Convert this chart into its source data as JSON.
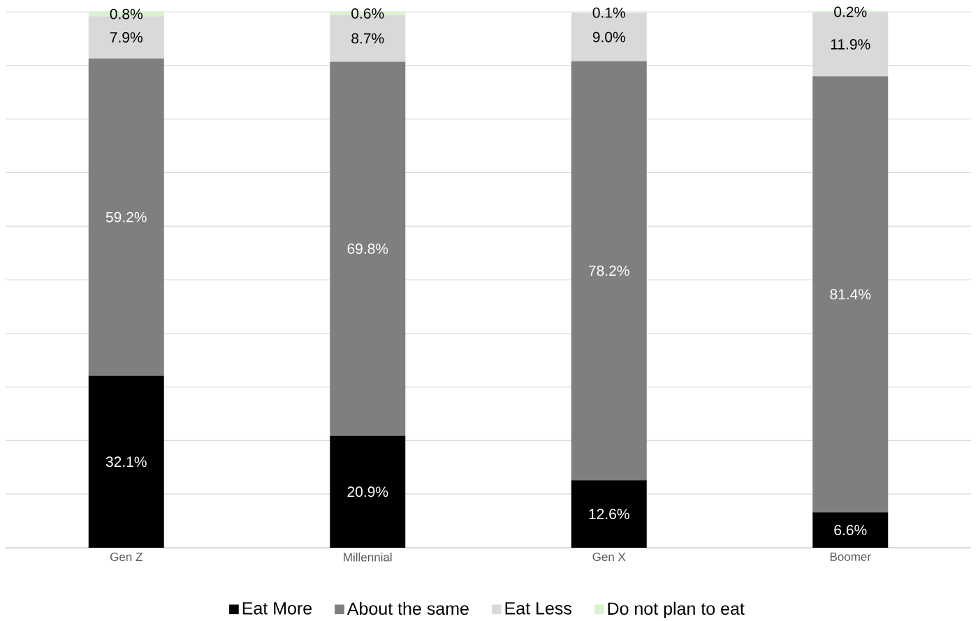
{
  "chart_data": {
    "type": "bar",
    "stacked": true,
    "categories": [
      "Gen Z",
      "Millennial",
      "Gen X",
      "Boomer"
    ],
    "series": [
      {
        "name": "Eat More",
        "color": "#000000",
        "values": [
          32.1,
          20.9,
          12.6,
          6.6
        ],
        "value_labels": [
          "32.1%",
          "20.9%",
          "12.6%",
          "6.6%"
        ]
      },
      {
        "name": "About the same",
        "color": "#7f7f7f",
        "values": [
          59.2,
          69.8,
          78.2,
          81.4
        ],
        "value_labels": [
          "59.2%",
          "69.8%",
          "78.2%",
          "81.4%"
        ]
      },
      {
        "name": "Eat Less",
        "color": "#d9d9d9",
        "values": [
          7.9,
          8.7,
          9.0,
          11.9
        ],
        "value_labels": [
          "7.9%",
          "8.7%",
          "9.0%",
          "11.9%"
        ]
      },
      {
        "name": "Do not plan to eat",
        "color": "#d9f2d0",
        "values": [
          0.8,
          0.6,
          0.1,
          0.2
        ],
        "value_labels": [
          "0.8%",
          "0.6%",
          "0.1%",
          "0.2%"
        ]
      }
    ],
    "ylim": [
      0,
      100
    ],
    "yticks": [
      {
        "value": 0,
        "label": null
      },
      {
        "value": 10,
        "label": null
      },
      {
        "value": 20,
        "label": null
      },
      {
        "value": 30,
        "label": null
      },
      {
        "value": 40,
        "label": null
      },
      {
        "value": 50,
        "label": null
      },
      {
        "value": 60,
        "label": null
      },
      {
        "value": 70,
        "label": null
      },
      {
        "value": 80,
        "label": null
      },
      {
        "value": 90,
        "label": null
      },
      {
        "value": 100,
        "label": null
      }
    ],
    "grid": "y",
    "legend": "bottom",
    "tick_labels": "x"
  }
}
